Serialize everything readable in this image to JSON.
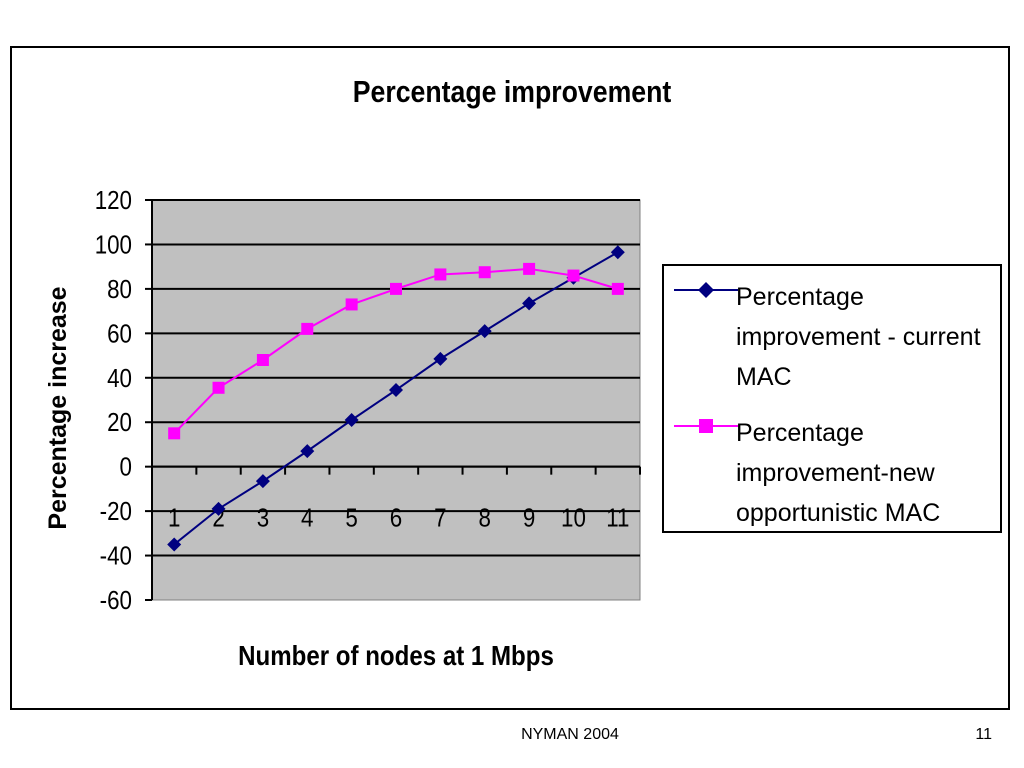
{
  "chart_data": {
    "type": "line",
    "title": "Percentage improvement",
    "xlabel": "Number of nodes at 1 Mbps",
    "ylabel": "Percentage increase",
    "categories": [
      "1",
      "2",
      "3",
      "4",
      "5",
      "6",
      "7",
      "8",
      "9",
      "10",
      "11"
    ],
    "ylim": [
      -60,
      120
    ],
    "yticks": [
      "120",
      "100",
      "80",
      "60",
      "40",
      "20",
      "0",
      "-20",
      "-40",
      "-60"
    ],
    "grid": true,
    "legend_position": "right",
    "plot_background": "#c0c0c0",
    "series": [
      {
        "name": "Percentage improvement - current MAC",
        "name_lines": [
          "Percentage",
          "improvement - current",
          "MAC"
        ],
        "color": "#000080",
        "marker": "diamond",
        "values": [
          -35,
          -19,
          -6.5,
          7,
          21,
          34.5,
          48.5,
          61,
          73.5,
          85,
          96.5
        ]
      },
      {
        "name": "Percentage improvement-new opportunistic MAC",
        "name_lines": [
          "Percentage",
          "improvement-new",
          "opportunistic MAC"
        ],
        "color": "#ff00ff",
        "marker": "square",
        "values": [
          15,
          35.5,
          48,
          62,
          73,
          80,
          86.5,
          87.5,
          89,
          86,
          80
        ]
      }
    ]
  },
  "footer": {
    "left": "NYMAN 2004",
    "right": "11"
  }
}
